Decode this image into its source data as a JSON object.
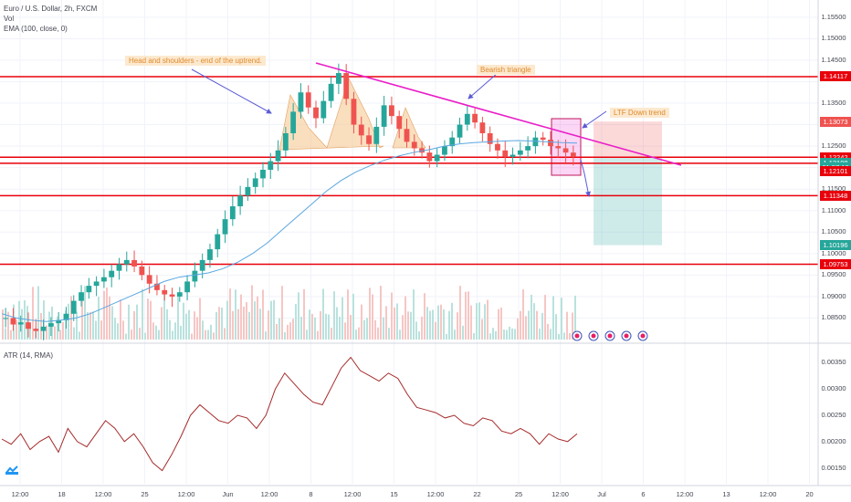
{
  "legend": {
    "symbol": "Euro / U.S. Dollar, 2h, FXCM",
    "vol": "Vol",
    "ema": "EMA (100, close, 0)",
    "atr": "ATR (14, RMA)"
  },
  "annotations": {
    "head_shoulders": "Head and shoulders - end of the uptrend.",
    "bearish_triangle": "Bearish triangle",
    "ltf_down": "LTF Down trend"
  },
  "colors": {
    "candle_up": "#26a69a",
    "candle_down": "#ef5350",
    "ema": "#5ba7e0",
    "atr": "#a52a2a",
    "hline": "#e8000b",
    "trendline": "#e91ec8",
    "hs_fill": "#f6c48a",
    "note_text": "#e08a2c",
    "arrow": "#5b5bd6",
    "target_green": "#26a69a",
    "stop_red": "#ef5350"
  },
  "price_axis": {
    "ticks": [
      "1.15500",
      "1.15000",
      "1.14500",
      "1.13500",
      "1.13000",
      "1.12500",
      "1.11500",
      "1.11000",
      "1.10500",
      "1.10000",
      "1.09500",
      "1.09000",
      "1.08500"
    ],
    "tags": [
      {
        "text": "1.14117",
        "value": 1.14117,
        "color": "#e8000b"
      },
      {
        "text": "1.13073",
        "value": 1.13073,
        "color": "#ef5350"
      },
      {
        "text": "1.12242",
        "value": 1.12242,
        "color": "#e8000b"
      },
      {
        "text": "1.12114",
        "value": 1.12114,
        "color": "#787b86"
      },
      {
        "text": "1.12108",
        "value": 1.12108,
        "color": "#26a69a"
      },
      {
        "text": "01:57:16",
        "value": 1.12008,
        "color": "#26a69a"
      },
      {
        "text": "1.12101",
        "value": 1.11908,
        "color": "#e8000b"
      },
      {
        "text": "1.11348",
        "value": 1.11348,
        "color": "#e8000b"
      },
      {
        "text": "1.10196",
        "value": 1.10196,
        "color": "#26a69a"
      },
      {
        "text": "1.09753",
        "value": 1.09753,
        "color": "#e8000b"
      }
    ]
  },
  "atr_axis": {
    "ticks": [
      "0.00350",
      "0.00300",
      "0.00250",
      "0.00200",
      "0.00150"
    ]
  },
  "time_axis": {
    "labels": [
      "12:00",
      "18",
      "12:00",
      "25",
      "12:00",
      "Jun",
      "12:00",
      "8",
      "12:00",
      "15",
      "12:00",
      "22",
      "25",
      "12:00",
      "Jul",
      "6",
      "12:00",
      "13",
      "12:00",
      "20"
    ]
  },
  "chart_data": {
    "type": "candlestick",
    "symbol": "EURUSD",
    "timeframe": "2h",
    "y_range": [
      1.08,
      1.159
    ],
    "horizontal_levels": [
      1.14117,
      1.12242,
      1.12101,
      1.11348,
      1.09753
    ],
    "close_series": [
      1.085,
      1.0835,
      1.084,
      1.0825,
      1.082,
      1.083,
      1.0838,
      1.0845,
      1.086,
      1.089,
      1.091,
      1.0925,
      1.0935,
      1.0945,
      1.096,
      1.0975,
      1.0985,
      1.097,
      1.095,
      1.093,
      1.0915,
      1.0905,
      1.09,
      1.091,
      1.0935,
      1.096,
      1.0985,
      1.101,
      1.1045,
      1.108,
      1.111,
      1.1135,
      1.1155,
      1.1175,
      1.1195,
      1.1215,
      1.124,
      1.128,
      1.133,
      1.1375,
      1.134,
      1.1315,
      1.1355,
      1.1395,
      1.142,
      1.136,
      1.13,
      1.1275,
      1.1255,
      1.1295,
      1.1345,
      1.132,
      1.129,
      1.126,
      1.1245,
      1.1235,
      1.1215,
      1.123,
      1.125,
      1.127,
      1.13,
      1.1325,
      1.1305,
      1.128,
      1.1255,
      1.124,
      1.1225,
      1.123,
      1.124,
      1.125,
      1.127,
      1.1265,
      1.125,
      1.1245,
      1.1235,
      1.1225
    ],
    "ema100": [
      1.086,
      1.085,
      1.0845,
      1.0842,
      1.0845,
      1.085,
      1.086,
      1.0875,
      1.089,
      1.0905,
      1.092,
      1.0935,
      1.0945,
      1.095,
      1.0955,
      1.0965,
      1.098,
      1.1,
      1.1025,
      1.1055,
      1.1085,
      1.1115,
      1.1145,
      1.117,
      1.119,
      1.1205,
      1.1218,
      1.1228,
      1.1236,
      1.1242,
      1.125,
      1.1255,
      1.1258,
      1.126,
      1.1262,
      1.1263,
      1.1262,
      1.126,
      1.1258,
      1.1257
    ],
    "atr": [
      0.00205,
      0.00195,
      0.00215,
      0.00185,
      0.002,
      0.0021,
      0.0018,
      0.00225,
      0.002,
      0.0019,
      0.00215,
      0.0024,
      0.00225,
      0.002,
      0.00215,
      0.0019,
      0.0016,
      0.00145,
      0.00175,
      0.0021,
      0.0025,
      0.0027,
      0.00255,
      0.0024,
      0.00235,
      0.0025,
      0.00245,
      0.00225,
      0.0025,
      0.003,
      0.0033,
      0.0031,
      0.0029,
      0.00275,
      0.0027,
      0.00305,
      0.0034,
      0.0036,
      0.00335,
      0.00325,
      0.00315,
      0.0033,
      0.0032,
      0.0029,
      0.00265,
      0.0026,
      0.00255,
      0.00245,
      0.0025,
      0.00235,
      0.0023,
      0.00245,
      0.0024,
      0.0022,
      0.00215,
      0.00225,
      0.00215,
      0.00195,
      0.00215,
      0.00205,
      0.002,
      0.00215
    ]
  }
}
